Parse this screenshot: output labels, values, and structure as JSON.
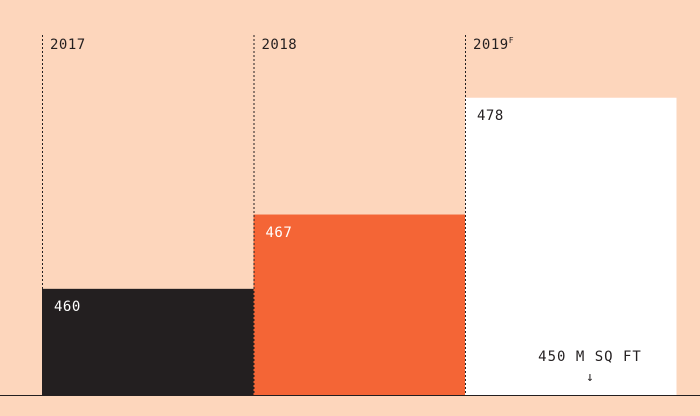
{
  "chart_data": {
    "type": "bar",
    "categories": [
      "2017",
      "2018",
      "2019"
    ],
    "category_superscripts": [
      "",
      "",
      "F"
    ],
    "values": [
      460,
      467,
      478
    ],
    "value_labels": [
      "460",
      "467",
      "478"
    ],
    "baseline_value": 450,
    "baseline_label": "450 M SQ FT",
    "baseline_arrow": "↓",
    "colors": [
      "#231f20",
      "#f46536",
      "#ffffff"
    ],
    "label_colors": [
      "#ffffff",
      "#ffffff",
      "#231f20"
    ],
    "background": "#fdd6bc",
    "ylim": [
      450,
      479.2
    ],
    "title": "",
    "xlabel": "",
    "ylabel": ""
  }
}
